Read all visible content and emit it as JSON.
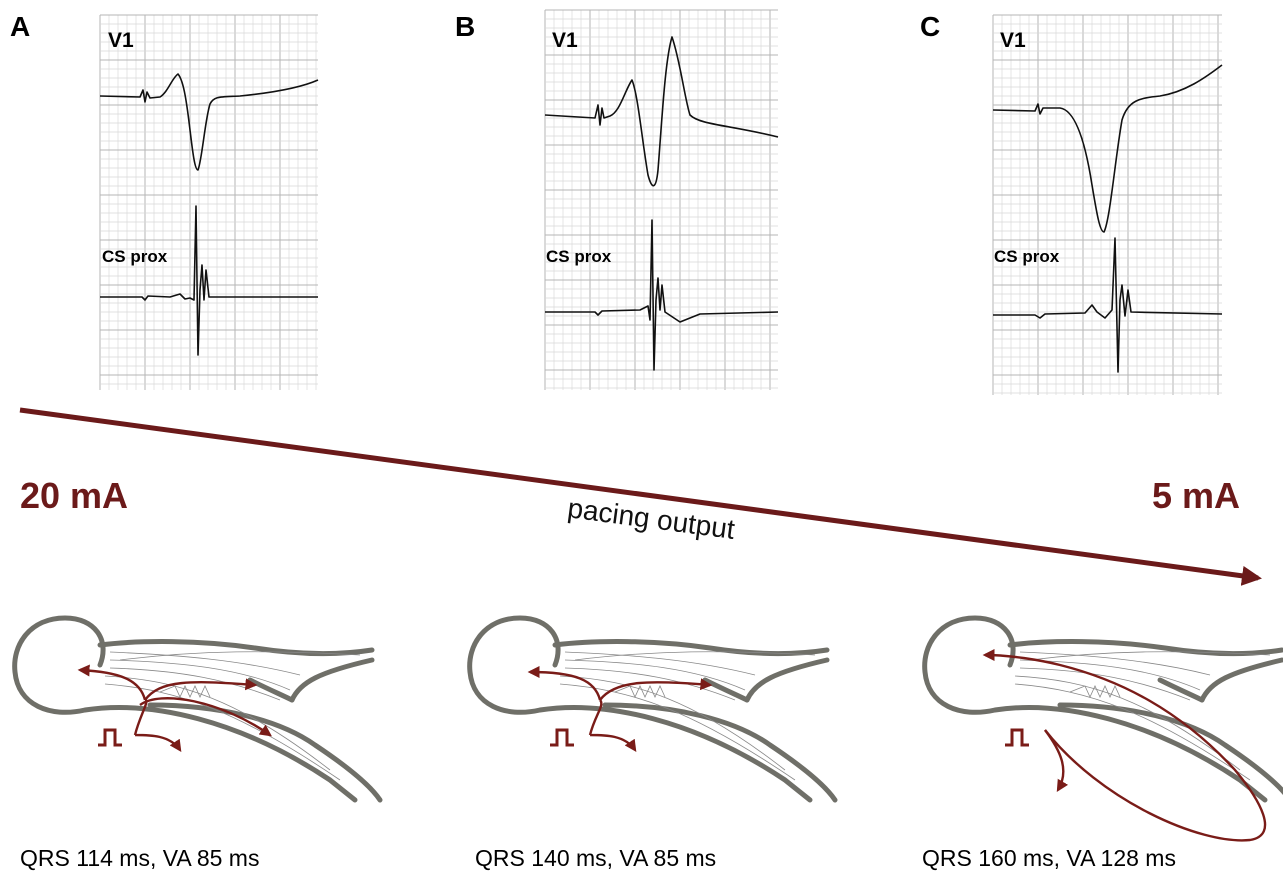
{
  "panels": [
    {
      "letter": "A",
      "lead1": "V1",
      "lead2": "CS prox",
      "caption": "QRS 114 ms, VA 85 ms"
    },
    {
      "letter": "B",
      "lead1": "V1",
      "lead2": "CS prox",
      "caption": "QRS 140 ms, VA 85 ms"
    },
    {
      "letter": "C",
      "lead1": "V1",
      "lead2": "CS prox",
      "caption": "QRS 160 ms, VA 128 ms"
    }
  ],
  "arrow": {
    "start": "20 mA",
    "end": "5 mA",
    "label": "pacing output"
  }
}
